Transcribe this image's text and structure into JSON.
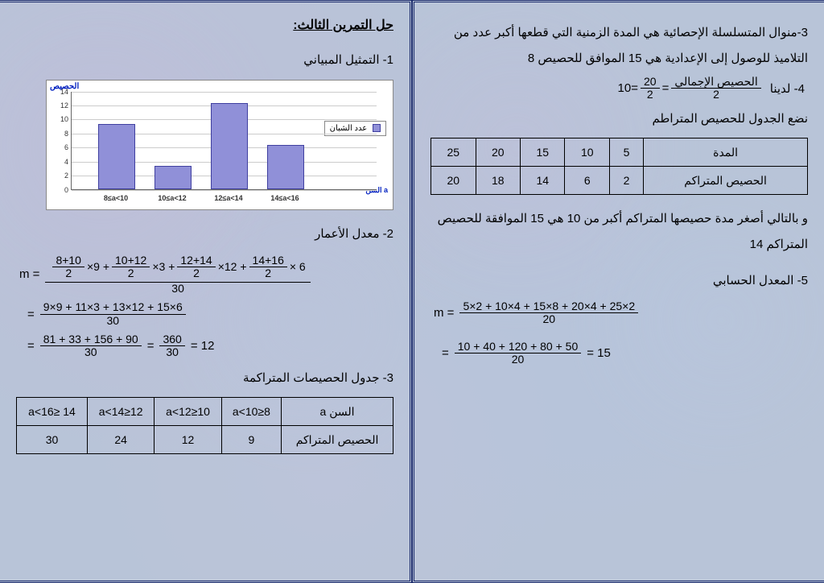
{
  "right": {
    "line_mode": "3-منوال المتسلسلة الإحصائية هي المدة الزمنية التي قطعها أكبر عدد من التلاميذ للوصول إلى الإعدادية هي 15 الموافق للحصيص 8",
    "line4_prefix": "4- لدينا",
    "eq4_result": "10",
    "eq4_frac1_num": "20",
    "eq4_frac1_den": "2",
    "eq4_frac2_num": "الحصيص الإجمالي",
    "eq4_frac2_den": "2",
    "line_cumul_intro": "نضع الجدول للحصيص المتراطم",
    "table1": {
      "header": "المدة",
      "cols": [
        "5",
        "10",
        "15",
        "20",
        "25"
      ],
      "row_label": "الحصيص المتراكم",
      "row": [
        "2",
        "6",
        "14",
        "18",
        "20"
      ]
    },
    "line_median": "و بالتالي أصغر مدة حصيصها المتراكم أكبر من 10 هي 15 الموافقة للحصيص المتراكم 14",
    "line5": "5- المعدل الحسابي",
    "eq5a_num": "5×2 + 10×4 + 15×8 + 20×4 + 25×2",
    "eq5a_den": "20",
    "eq5b_num": "10 + 40 + 120 + 80 + 50",
    "eq5b_den": "20",
    "eq5b_result": "= 15"
  },
  "left": {
    "title": "حل التمرين الثالث:",
    "line1": "1- التمثيل المبياني",
    "chart": {
      "y_label": "الحصيص",
      "x_label": "السن a",
      "legend": "عدد الشبان",
      "y_max": 14,
      "y_step": 2,
      "categories": [
        "8≤a<10",
        "10≤a<12",
        "12≤a<14",
        "14≤a<16"
      ],
      "values": [
        9,
        3,
        12,
        6
      ],
      "bar_color": "#9090d8",
      "bar_border": "#4040a0"
    },
    "line2": "2- معدل الأعمار",
    "eq_m_main": {
      "t1_num": "8+10",
      "t1_den": "2",
      "t1_mul": "×9 +",
      "t2_num": "10+12",
      "t2_den": "2",
      "t2_mul": "×3 +",
      "t3_num": "12+14",
      "t3_den": "2",
      "t3_mul": "×12 +",
      "t4_num": "14+16",
      "t4_den": "2",
      "t4_mul": "× 6",
      "big_den": "30"
    },
    "eq_m2_num": "9×9 + 11×3 + 13×12 + 15×6",
    "eq_m2_den": "30",
    "eq_m3a_num": "81 + 33 + 156 + 90",
    "eq_m3a_den": "30",
    "eq_m3b_num": "360",
    "eq_m3b_den": "30",
    "eq_m3_result": "= 12",
    "line3": "3- جدول الحصيصات المتراكمة",
    "table2": {
      "header": "السن a",
      "cols": [
        "8≤a<10",
        "10≤a<12",
        "12≤a<14",
        "14 ≤a<16"
      ],
      "row_label": "الحصيص المتراكم",
      "row": [
        "9",
        "12",
        "24",
        "30"
      ]
    }
  }
}
